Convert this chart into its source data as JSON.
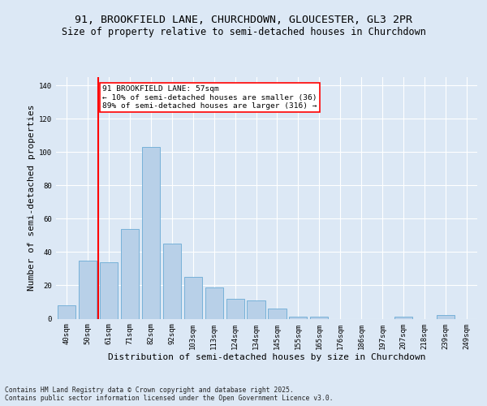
{
  "title_line1": "91, BROOKFIELD LANE, CHURCHDOWN, GLOUCESTER, GL3 2PR",
  "title_line2": "Size of property relative to semi-detached houses in Churchdown",
  "xlabel": "Distribution of semi-detached houses by size in Churchdown",
  "ylabel": "Number of semi-detached properties",
  "footnote": "Contains HM Land Registry data © Crown copyright and database right 2025.\nContains public sector information licensed under the Open Government Licence v3.0.",
  "categories": [
    "40sqm",
    "50sqm",
    "61sqm",
    "71sqm",
    "82sqm",
    "92sqm",
    "103sqm",
    "113sqm",
    "124sqm",
    "134sqm",
    "145sqm",
    "155sqm",
    "165sqm",
    "176sqm",
    "186sqm",
    "197sqm",
    "207sqm",
    "218sqm",
    "239sqm",
    "249sqm"
  ],
  "values": [
    8,
    35,
    34,
    54,
    103,
    45,
    25,
    19,
    12,
    11,
    6,
    1,
    1,
    0,
    0,
    0,
    1,
    0,
    2,
    0
  ],
  "bar_color": "#b8d0e8",
  "bar_edge_color": "#6aaad4",
  "bar_linewidth": 0.6,
  "vline_x": 1.5,
  "vline_color": "red",
  "vline_linewidth": 1.5,
  "annotation_title": "91 BROOKFIELD LANE: 57sqm",
  "annotation_line2": "← 10% of semi-detached houses are smaller (36)",
  "annotation_line3": "89% of semi-detached houses are larger (316) →",
  "annotation_box_color": "white",
  "annotation_box_edge_color": "red",
  "ylim": [
    0,
    145
  ],
  "yticks": [
    0,
    20,
    40,
    60,
    80,
    100,
    120,
    140
  ],
  "background_color": "#dce8f5",
  "plot_background_color": "#dce8f5",
  "grid_color": "white",
  "title_fontsize": 9.5,
  "subtitle_fontsize": 8.5,
  "axis_label_fontsize": 8,
  "tick_fontsize": 6.5,
  "footnote_fontsize": 5.8
}
